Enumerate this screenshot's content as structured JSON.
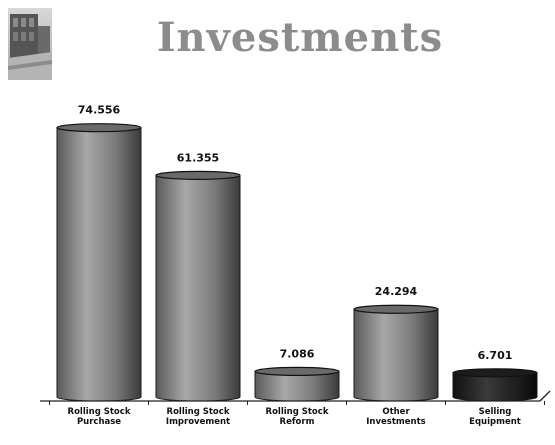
{
  "slide": {
    "title": "Investments"
  },
  "colors": {
    "title": "#8c8c8c",
    "bar_light": "#9a9a9a",
    "bar_dark": "#2a2a2a",
    "axis": "#222222"
  },
  "chart_data": {
    "type": "bar",
    "title": "",
    "xlabel": "",
    "ylabel": "",
    "ylim": [
      0,
      80
    ],
    "grid": false,
    "categories": [
      [
        "Rolling Stock",
        "Purchase"
      ],
      [
        "Rolling Stock",
        "Improvement"
      ],
      [
        "Rolling Stock",
        "Reform"
      ],
      [
        "Other",
        "Investments"
      ],
      [
        "Selling",
        "Equipment"
      ]
    ],
    "values": [
      74.556,
      61.355,
      7.086,
      24.294,
      6.701
    ],
    "value_labels": [
      "74.556",
      "61.355",
      "7.086",
      "24.294",
      "6.701"
    ],
    "bar_shades": [
      "#8f8f8f",
      "#858585",
      "#7a7a7a",
      "#6e6e6e",
      "#222222"
    ]
  }
}
